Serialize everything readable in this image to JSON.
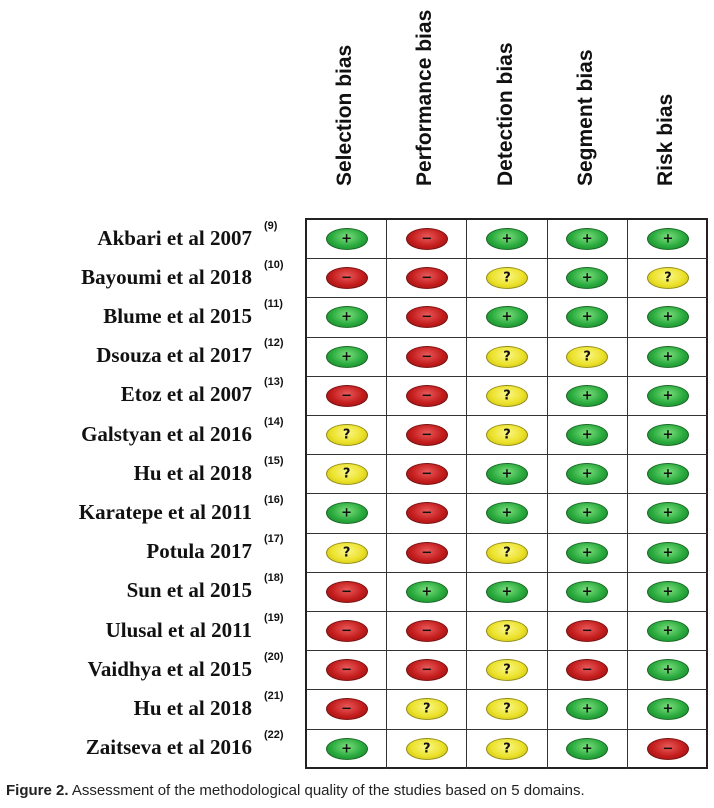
{
  "domains": [
    "Selection bias",
    "Performance bias",
    "Detection bias",
    "Segment bias",
    "Risk bias"
  ],
  "studies": [
    {
      "name": "Akbari et al 2007",
      "ref": "(9)",
      "ratings": [
        "low",
        "high",
        "low",
        "low",
        "low"
      ]
    },
    {
      "name": "Bayoumi et al 2018",
      "ref": "(10)",
      "ratings": [
        "high",
        "high",
        "unclear",
        "low",
        "unclear"
      ]
    },
    {
      "name": "Blume et al 2015",
      "ref": "(11)",
      "ratings": [
        "low",
        "high",
        "low",
        "low",
        "low"
      ]
    },
    {
      "name": "Dsouza et al 2017",
      "ref": "(12)",
      "ratings": [
        "low",
        "high",
        "unclear",
        "unclear",
        "low"
      ]
    },
    {
      "name": "Etoz et al 2007",
      "ref": "(13)",
      "ratings": [
        "high",
        "high",
        "unclear",
        "low",
        "low"
      ]
    },
    {
      "name": "Galstyan et al 2016",
      "ref": "(14)",
      "ratings": [
        "unclear",
        "high",
        "unclear",
        "low",
        "low"
      ]
    },
    {
      "name": "Hu et al 2018",
      "ref": "(15)",
      "ratings": [
        "unclear",
        "high",
        "low",
        "low",
        "low"
      ]
    },
    {
      "name": "Karatepe et al 2011",
      "ref": "(16)",
      "ratings": [
        "low",
        "high",
        "low",
        "low",
        "low"
      ]
    },
    {
      "name": "Potula 2017",
      "ref": "(17)",
      "ratings": [
        "unclear",
        "high",
        "unclear",
        "low",
        "low"
      ]
    },
    {
      "name": "Sun et al 2015",
      "ref": "(18)",
      "ratings": [
        "high",
        "low",
        "low",
        "low",
        "low"
      ]
    },
    {
      "name": "Ulusal et al 2011",
      "ref": "(19)",
      "ratings": [
        "high",
        "high",
        "unclear",
        "high",
        "low"
      ]
    },
    {
      "name": "Vaidhya et al 2015",
      "ref": "(20)",
      "ratings": [
        "high",
        "high",
        "unclear",
        "high",
        "low"
      ]
    },
    {
      "name": "Hu et al 2018",
      "ref": "(21)",
      "ratings": [
        "high",
        "unclear",
        "unclear",
        "low",
        "low"
      ]
    },
    {
      "name": "Zaitseva et al 2016",
      "ref": "(22)",
      "ratings": [
        "low",
        "unclear",
        "unclear",
        "low",
        "high"
      ]
    }
  ],
  "symbols": {
    "low": "+",
    "high": "−",
    "unclear": "?"
  },
  "colors": {
    "low": "#2aab3e",
    "high": "#c41d1d",
    "unclear": "#ece22b"
  },
  "caption": {
    "label": "Figure 2.",
    "text": " Assessment of the methodological quality of the studies based on 5 domains."
  }
}
